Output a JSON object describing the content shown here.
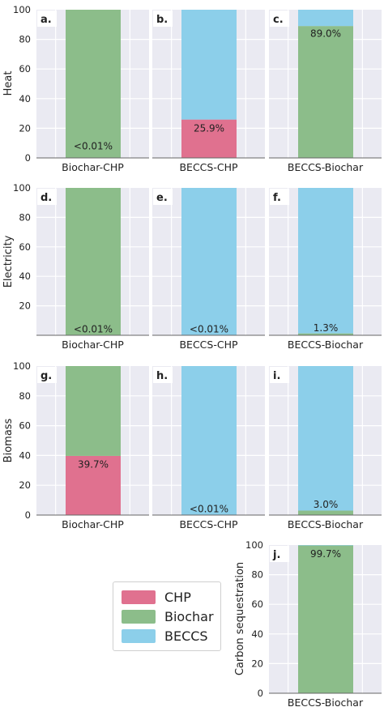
{
  "colors": {
    "CHP": "#e0718f",
    "Biochar": "#8cbd8a",
    "BECCS": "#8ccfea",
    "panel_bg": "#eaeaf2",
    "grid": "#ffffff",
    "text": "#222222"
  },
  "legend": {
    "items": [
      {
        "name": "CHP",
        "color": "#e0718f"
      },
      {
        "name": "Biochar",
        "color": "#8cbd8a"
      },
      {
        "name": "BECCS",
        "color": "#8ccfea"
      }
    ]
  },
  "chart_data": [
    {
      "panel": "a.",
      "type": "bar",
      "row_label": "Heat",
      "ylim": [
        0,
        100
      ],
      "yticks": [
        "0",
        "20",
        "40",
        "60",
        "80",
        "100"
      ],
      "category": "Biochar-CHP",
      "stack": {
        "CHP": 0,
        "Biochar": 100,
        "BECCS": 0
      },
      "annotation": "<0.01%",
      "annotation_y": 8
    },
    {
      "panel": "b.",
      "type": "bar",
      "row_label": "Heat",
      "ylim": [
        0,
        100
      ],
      "yticks": [],
      "category": "BECCS-CHP",
      "stack": {
        "CHP": 25.9,
        "Biochar": 0,
        "BECCS": 74.1
      },
      "annotation": "25.9%",
      "annotation_y": 20
    },
    {
      "panel": "c.",
      "type": "bar",
      "row_label": "Heat",
      "ylim": [
        0,
        100
      ],
      "yticks": [],
      "category": "BECCS-Biochar",
      "stack": {
        "CHP": 0,
        "Biochar": 89.0,
        "BECCS": 11.0
      },
      "annotation": "89.0%",
      "annotation_y": 84
    },
    {
      "panel": "d.",
      "type": "bar",
      "row_label": "Electricity",
      "ylim": [
        0,
        100
      ],
      "yticks": [
        "20",
        "40",
        "60",
        "80",
        "100"
      ],
      "category": "Biochar-CHP",
      "stack": {
        "CHP": 0,
        "Biochar": 100,
        "BECCS": 0
      },
      "annotation": "<0.01%",
      "annotation_y": 4
    },
    {
      "panel": "e.",
      "type": "bar",
      "row_label": "Electricity",
      "ylim": [
        0,
        100
      ],
      "yticks": [],
      "category": "BECCS-CHP",
      "stack": {
        "CHP": 0,
        "Biochar": 0,
        "BECCS": 100
      },
      "annotation": "<0.01%",
      "annotation_y": 4
    },
    {
      "panel": "f.",
      "type": "bar",
      "row_label": "Electricity",
      "ylim": [
        0,
        100
      ],
      "yticks": [],
      "category": "BECCS-Biochar",
      "stack": {
        "CHP": 0,
        "Biochar": 1.3,
        "BECCS": 98.7
      },
      "annotation": "1.3%",
      "annotation_y": 5
    },
    {
      "panel": "g.",
      "type": "bar",
      "row_label": "Biomass",
      "ylim": [
        0,
        100
      ],
      "yticks": [
        "0",
        "20",
        "40",
        "60",
        "80",
        "100"
      ],
      "category": "Biochar-CHP",
      "stack": {
        "CHP": 39.7,
        "Biochar": 60.3,
        "BECCS": 0
      },
      "annotation": "39.7%",
      "annotation_y": 34
    },
    {
      "panel": "h.",
      "type": "bar",
      "row_label": "Biomass",
      "ylim": [
        0,
        100
      ],
      "yticks": [],
      "category": "BECCS-CHP",
      "stack": {
        "CHP": 0,
        "Biochar": 0,
        "BECCS": 100
      },
      "annotation": "<0.01%",
      "annotation_y": 4
    },
    {
      "panel": "i.",
      "type": "bar",
      "row_label": "Biomass",
      "ylim": [
        0,
        100
      ],
      "yticks": [],
      "category": "BECCS-Biochar",
      "stack": {
        "CHP": 0,
        "Biochar": 3.0,
        "BECCS": 97.0
      },
      "annotation": "3.0%",
      "annotation_y": 7
    },
    {
      "panel": "j.",
      "type": "bar",
      "row_label": "Carbon sequestration",
      "ylim": [
        0,
        100
      ],
      "yticks": [
        "0",
        "20",
        "40",
        "60",
        "80",
        "100"
      ],
      "category": "BECCS-Biochar",
      "stack": {
        "CHP": 0,
        "Biochar": 99.7,
        "BECCS": 0.3
      },
      "annotation": "99.7%",
      "annotation_y": 94
    }
  ]
}
